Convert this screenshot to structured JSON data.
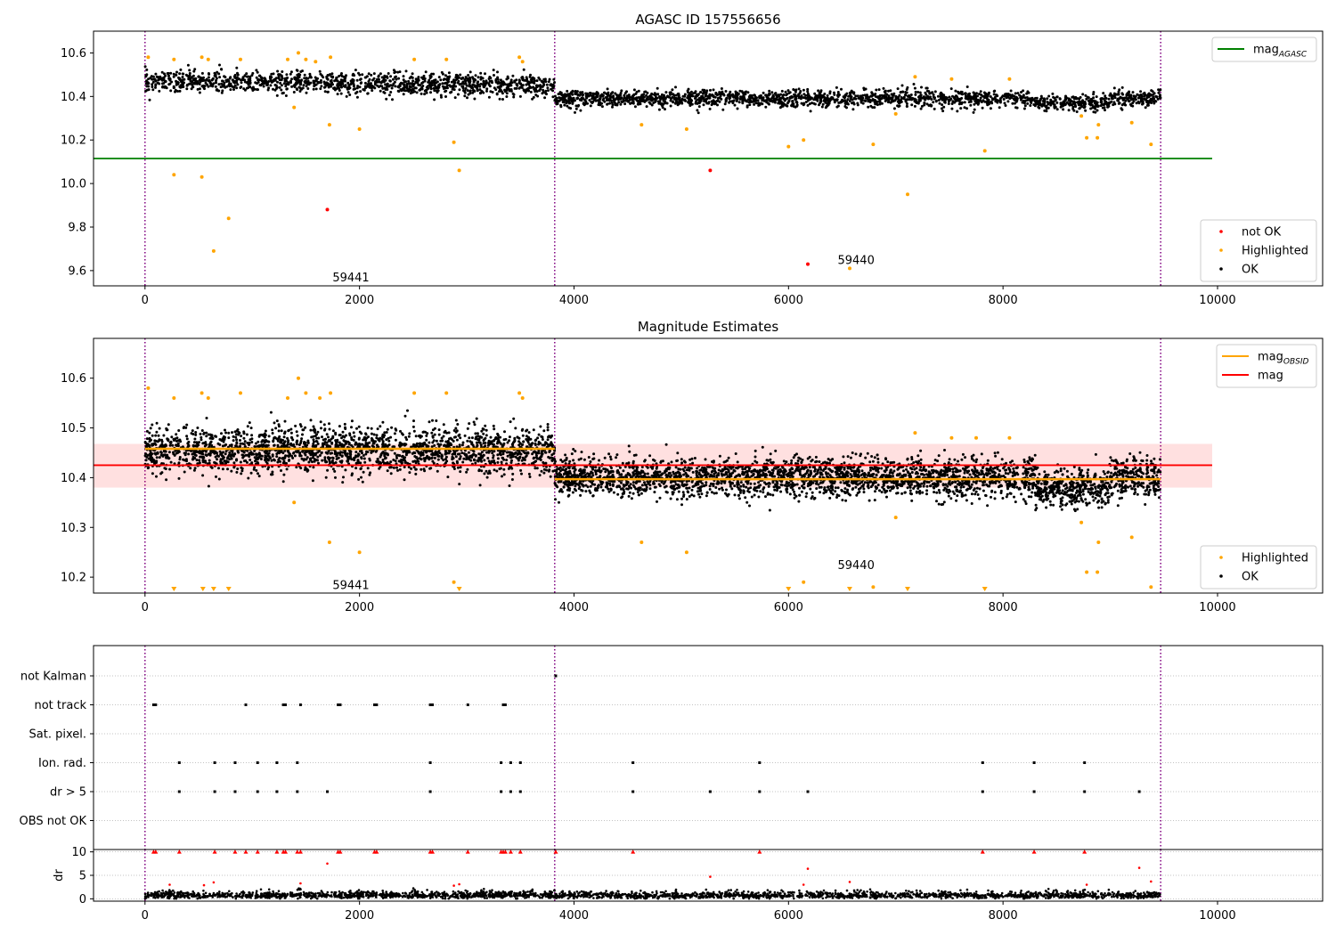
{
  "chart_data": [
    {
      "type": "scatter",
      "title": "AGASC ID 157556656",
      "xlim": [
        -480,
        10980
      ],
      "ylim": [
        9.53,
        10.7
      ],
      "xticks": [
        0,
        2000,
        4000,
        6000,
        8000,
        10000
      ],
      "yticks": [
        9.6,
        9.8,
        10.0,
        10.2,
        10.4,
        10.6
      ],
      "ytick_labels": [
        "9.6",
        "9.8",
        "10.0",
        "10.2",
        "10.4",
        "10.6"
      ],
      "obs_boundaries": [
        0,
        3820,
        9470
      ],
      "obs_labels": [
        {
          "text": "59441",
          "x": 1920,
          "y": 9.57
        },
        {
          "text": "59440",
          "x": 6630,
          "y": 9.65
        }
      ],
      "agasc_mag": {
        "value": 10.115,
        "x": [
          -480,
          9950
        ],
        "label": "mag",
        "label_sub": "AGASC",
        "color": "#008000"
      },
      "ok_bands": [
        {
          "x": [
            0,
            3820
          ],
          "center_start": 10.47,
          "center_end": 10.45,
          "spread": 0.045
        },
        {
          "x": [
            3820,
            9470
          ],
          "center": 10.39,
          "spread": 0.035
        }
      ],
      "highlighted_points": [
        [
          30,
          10.58
        ],
        [
          270,
          10.04
        ],
        [
          270,
          10.57
        ],
        [
          530,
          10.03
        ],
        [
          530,
          10.58
        ],
        [
          590,
          10.57
        ],
        [
          640,
          9.69
        ],
        [
          780,
          9.84
        ],
        [
          890,
          10.57
        ],
        [
          1330,
          10.57
        ],
        [
          1390,
          10.35
        ],
        [
          1430,
          10.6
        ],
        [
          1500,
          10.57
        ],
        [
          1590,
          10.56
        ],
        [
          1720,
          10.27
        ],
        [
          1730,
          10.58
        ],
        [
          2000,
          10.25
        ],
        [
          2510,
          10.57
        ],
        [
          2810,
          10.57
        ],
        [
          2880,
          10.19
        ],
        [
          2930,
          10.06
        ],
        [
          3490,
          10.58
        ],
        [
          3520,
          10.56
        ],
        [
          4630,
          10.27
        ],
        [
          5050,
          10.25
        ],
        [
          6000,
          10.17
        ],
        [
          6140,
          10.2
        ],
        [
          6570,
          9.61
        ],
        [
          6790,
          10.18
        ],
        [
          7000,
          10.32
        ],
        [
          7110,
          9.95
        ],
        [
          7180,
          10.49
        ],
        [
          7520,
          10.48
        ],
        [
          7830,
          10.15
        ],
        [
          8060,
          10.48
        ],
        [
          8730,
          10.31
        ],
        [
          8780,
          10.21
        ],
        [
          8880,
          10.21
        ],
        [
          8890,
          10.27
        ],
        [
          9200,
          10.28
        ],
        [
          9380,
          10.18
        ]
      ],
      "not_ok_points": [
        [
          1700,
          9.88
        ],
        [
          5270,
          10.06
        ],
        [
          6180,
          9.63
        ]
      ],
      "legend": [
        {
          "label": "mag",
          "sub": "AGASC",
          "type": "line",
          "color": "#008000"
        },
        {
          "label": "not OK",
          "type": "marker",
          "color": "#ff0000"
        },
        {
          "label": "Highlighted",
          "type": "marker",
          "color": "#ffa500"
        },
        {
          "label": "OK",
          "type": "marker",
          "color": "#000000"
        }
      ]
    },
    {
      "type": "scatter",
      "title": "Magnitude Estimates",
      "xlim": [
        -480,
        10980
      ],
      "ylim": [
        10.168,
        10.68
      ],
      "xticks": [
        0,
        2000,
        4000,
        6000,
        8000,
        10000
      ],
      "yticks": [
        10.2,
        10.3,
        10.4,
        10.5,
        10.6
      ],
      "ytick_labels": [
        "10.2",
        "10.3",
        "10.4",
        "10.5",
        "10.6"
      ],
      "obs_boundaries": [
        0,
        3820,
        9470
      ],
      "obs_labels": [
        {
          "text": "59441",
          "x": 1920,
          "y": 10.185
        },
        {
          "text": "59440",
          "x": 6630,
          "y": 10.225
        }
      ],
      "mag": {
        "value": 10.425,
        "band": [
          10.38,
          10.468
        ],
        "x": [
          -480,
          9950
        ],
        "label": "mag",
        "color": "#ff0000"
      },
      "mag_obsid": [
        {
          "x": [
            0,
            3820
          ],
          "value": 10.458
        },
        {
          "x": [
            3820,
            9470
          ],
          "value": 10.397
        }
      ],
      "ok_bands": [
        {
          "x": [
            0,
            3820
          ],
          "center": 10.455,
          "spread": 0.042
        },
        {
          "x": [
            3820,
            9470
          ],
          "center": 10.4,
          "spread": 0.035
        }
      ],
      "highlighted_points": [
        [
          30,
          10.58
        ],
        [
          270,
          10.56
        ],
        [
          530,
          10.57
        ],
        [
          590,
          10.56
        ],
        [
          890,
          10.57
        ],
        [
          1330,
          10.56
        ],
        [
          1390,
          10.35
        ],
        [
          1430,
          10.6
        ],
        [
          1500,
          10.57
        ],
        [
          1630,
          10.56
        ],
        [
          1720,
          10.27
        ],
        [
          1730,
          10.57
        ],
        [
          2000,
          10.25
        ],
        [
          2510,
          10.57
        ],
        [
          2810,
          10.57
        ],
        [
          2880,
          10.19
        ],
        [
          3490,
          10.57
        ],
        [
          3520,
          10.56
        ],
        [
          4630,
          10.27
        ],
        [
          5050,
          10.25
        ],
        [
          6140,
          10.19
        ],
        [
          6790,
          10.18
        ],
        [
          7000,
          10.32
        ],
        [
          7180,
          10.49
        ],
        [
          7520,
          10.48
        ],
        [
          7750,
          10.48
        ],
        [
          8060,
          10.48
        ],
        [
          8730,
          10.31
        ],
        [
          8780,
          10.21
        ],
        [
          8880,
          10.21
        ],
        [
          8890,
          10.27
        ],
        [
          9200,
          10.28
        ],
        [
          9380,
          10.18
        ]
      ],
      "clipped_low_x": [
        270,
        540,
        640,
        780,
        2930,
        6000,
        6570,
        7110,
        7830
      ],
      "legend": [
        {
          "label": "mag",
          "sub": "OBSID",
          "type": "line",
          "color": "#ffa500"
        },
        {
          "label": "mag",
          "type": "line",
          "color": "#ff0000"
        },
        {
          "label": "Highlighted",
          "type": "marker",
          "color": "#ffa500"
        },
        {
          "label": "OK",
          "type": "marker",
          "color": "#000000"
        }
      ]
    },
    {
      "type": "scatter",
      "xlim": [
        -480,
        10980
      ],
      "flag_rows": [
        "not Kalman",
        "not track",
        "Sat. pixel.",
        "Ion. rad.",
        "dr > 5",
        "OBS not OK"
      ],
      "obs_boundaries": [
        0,
        3820,
        9470
      ],
      "flags": {
        "not Kalman": [
          3830
        ],
        "not track": [
          80,
          100,
          940,
          1290,
          1310,
          1450,
          1800,
          1820,
          2140,
          2160,
          2660,
          2680,
          3010,
          3340,
          3360
        ],
        "Sat. pixel.": [],
        "Ion. rad.": [
          320,
          650,
          840,
          1050,
          1230,
          1420,
          2660,
          3320,
          3410,
          3500,
          4550,
          5730,
          7810,
          8290,
          8760
        ],
        "dr > 5": [
          320,
          650,
          840,
          1050,
          1230,
          1420,
          1700,
          2660,
          3320,
          3410,
          3500,
          4550,
          5270,
          5730,
          6180,
          7810,
          8290,
          8760,
          9270
        ],
        "OBS not OK": []
      }
    },
    {
      "type": "scatter",
      "xlim": [
        -480,
        10980
      ],
      "ylim": [
        -0.5,
        10.5
      ],
      "ylabel": "dr",
      "yticks": [
        0,
        5,
        10
      ],
      "ytick_labels": [
        "0",
        "5",
        "10"
      ],
      "xticks": [
        0,
        2000,
        4000,
        6000,
        8000,
        10000
      ],
      "obs_boundaries": [
        0,
        3820,
        9470
      ],
      "dr_base": {
        "center": 0.7,
        "spread": 0.45
      },
      "dr_capped_x": [
        80,
        100,
        320,
        650,
        840,
        940,
        1050,
        1230,
        1290,
        1310,
        1420,
        1450,
        1800,
        1820,
        2140,
        2160,
        2660,
        2680,
        3010,
        3320,
        3340,
        3360,
        3410,
        3500,
        3830,
        4550,
        5730,
        7810,
        8290,
        8760
      ],
      "dr_red_points": [
        [
          230,
          3.0
        ],
        [
          550,
          2.9
        ],
        [
          640,
          3.5
        ],
        [
          1700,
          7.5
        ],
        [
          1450,
          3.3
        ],
        [
          2880,
          2.8
        ],
        [
          2930,
          3.1
        ],
        [
          5270,
          4.7
        ],
        [
          6140,
          3.0
        ],
        [
          6180,
          6.4
        ],
        [
          6570,
          3.6
        ],
        [
          8780,
          3.0
        ],
        [
          9270,
          6.6
        ],
        [
          9380,
          3.7
        ]
      ],
      "dr_spikes": [
        [
          230,
          2.6
        ],
        [
          1440,
          3.0
        ],
        [
          1990,
          2.4
        ],
        [
          2500,
          2.3
        ],
        [
          3140,
          2.2
        ],
        [
          3600,
          2.4
        ],
        [
          8750,
          2.0
        ]
      ]
    }
  ]
}
